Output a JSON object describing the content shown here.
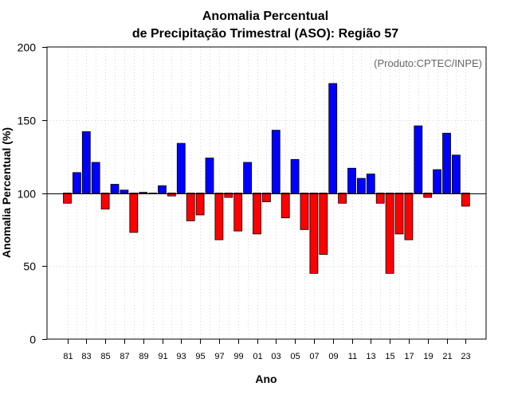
{
  "chart_data": {
    "type": "bar",
    "title_line1": "Anomalia Percentual",
    "title_line2": "de Precipitação Trimestral (ASO): Região 57",
    "credit": "(Produto:CPTEC/INPE)",
    "xlabel": "Ano",
    "ylabel": "Anomalia Percentual (%)",
    "ylim": [
      0,
      200
    ],
    "yticks": [
      0,
      50,
      100,
      150,
      200
    ],
    "baseline": 100,
    "grid": true,
    "colors": {
      "above": "#0000ff",
      "below": "#ff0000",
      "edge": "#000000",
      "baseline": "#000000",
      "grid": "#d9d9d9"
    },
    "xtick_labels": [
      "81",
      "83",
      "85",
      "87",
      "89",
      "91",
      "93",
      "95",
      "97",
      "99",
      "01",
      "03",
      "05",
      "07",
      "09",
      "11",
      "13",
      "15",
      "17",
      "19",
      "21",
      "23"
    ],
    "categories": [
      "1981",
      "1982",
      "1983",
      "1984",
      "1985",
      "1986",
      "1987",
      "1988",
      "1989",
      "1990",
      "1991",
      "1992",
      "1993",
      "1994",
      "1995",
      "1996",
      "1997",
      "1998",
      "1999",
      "2000",
      "2001",
      "2002",
      "2003",
      "2004",
      "2005",
      "2006",
      "2007",
      "2008",
      "2009",
      "2010",
      "2011",
      "2012",
      "2013",
      "2014",
      "2015",
      "2016",
      "2017",
      "2018",
      "2019",
      "2020",
      "2021",
      "2022",
      "2023"
    ],
    "values": [
      93,
      114,
      142,
      121,
      89,
      106,
      102,
      73,
      100.5,
      100,
      105,
      98,
      134,
      81,
      85,
      124,
      68,
      97,
      74,
      121,
      72,
      94,
      143,
      83,
      123,
      75,
      45,
      58,
      175,
      93,
      117,
      110,
      113,
      93,
      45,
      72,
      68,
      146,
      97,
      116,
      141,
      126,
      91
    ]
  }
}
